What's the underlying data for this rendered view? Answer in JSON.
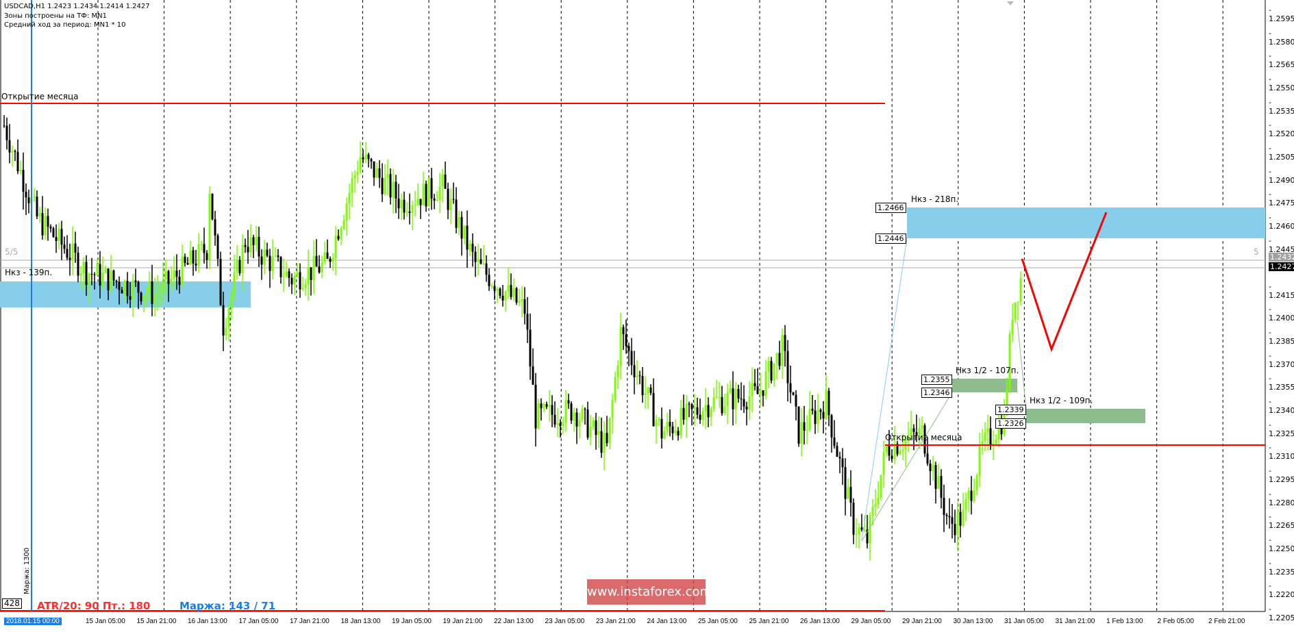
{
  "header": {
    "symbol_line": "USDCAD,H1  1.2423 1.2434 1.2414 1.2427",
    "zones_line": "Зоны построены на ТФ: MN1",
    "avg_line": "Средний ход за период: MN1 * 10"
  },
  "colors": {
    "bull": "#7cfc00",
    "bear": "#000000",
    "zone_blue": "#87ceeb",
    "zone_green": "#8fbc8f",
    "level_red": "#ff0000",
    "cursor_blue": "#1e7de0"
  },
  "annotations": {
    "month_open_1": "Открытие месяца",
    "month_open_2": "Открытие месяца",
    "zone_left": "Нкз - 139п.",
    "zone_right": "Нкз - 218п.",
    "zone_right_hi": "1.2466",
    "zone_right_lo": "1.2446",
    "half1": "Нкз 1/2 - 107п.",
    "half1_hi": "1.2355",
    "half1_lo": "1.2346",
    "half2": "Нкз 1/2 - 109п.",
    "half2_hi": "1.2339",
    "half2_lo": "1.2326",
    "level_left": "5/5",
    "level_right": "5",
    "counter": "428",
    "margin_vert": "Маржа: 1300",
    "atr": "ATR/20: 90  Пт.: 180",
    "margin": "Маржа: 143 / 71",
    "watermark": "www.instaforex.com"
  },
  "price_axis": {
    "ticks": [
      "1.2595",
      "1.2580",
      "1.2565",
      "1.2550",
      "1.2535",
      "1.2520",
      "1.2505",
      "1.2490",
      "1.2475",
      "1.2460",
      "1.2445",
      "1.2415",
      "1.2400",
      "1.2385",
      "1.2370",
      "1.2355",
      "1.2340",
      "1.2325",
      "1.2310",
      "1.2295",
      "1.2280",
      "1.2265",
      "1.2250",
      "1.2235",
      "1.2220",
      "1.2205"
    ],
    "ask": "1.2432",
    "bid": "1.2427"
  },
  "time_axis": {
    "cursor": "2018.01.15 00:00",
    "labels": [
      "15 Jan 05:00",
      "15 Jan 21:00",
      "16 Jan 13:00",
      "17 Jan 05:00",
      "17 Jan 21:00",
      "18 Jan 13:00",
      "19 Jan 05:00",
      "19 Jan 21:00",
      "22 Jan 13:00",
      "23 Jan 05:00",
      "23 Jan 21:00",
      "24 Jan 13:00",
      "25 Jan 05:00",
      "25 Jan 21:00",
      "26 Jan 13:00",
      "29 Jan 05:00",
      "29 Jan 21:00",
      "30 Jan 13:00",
      "31 Jan 05:00",
      "31 Jan 21:00",
      "1 Feb 13:00",
      "2 Feb 05:00",
      "2 Feb 21:00"
    ]
  },
  "chart_data": {
    "type": "candlestick",
    "symbol": "USDCAD",
    "timeframe": "H1",
    "ylim": [
      1.22,
      1.26
    ],
    "close_path": [
      [
        0,
        1.252
      ],
      [
        12,
        1.246
      ],
      [
        30,
        1.2425
      ],
      [
        55,
        1.241
      ],
      [
        74,
        1.244
      ],
      [
        75,
        1.248
      ],
      [
        80,
        1.239
      ],
      [
        88,
        1.2445
      ],
      [
        105,
        1.242
      ],
      [
        118,
        1.243
      ],
      [
        130,
        1.25
      ],
      [
        145,
        1.247
      ],
      [
        160,
        1.248
      ],
      [
        172,
        1.243
      ],
      [
        190,
        1.24
      ],
      [
        194,
        1.233
      ],
      [
        208,
        1.2335
      ],
      [
        220,
        1.231
      ],
      [
        225,
        1.2385
      ],
      [
        240,
        1.232
      ],
      [
        258,
        1.234
      ],
      [
        275,
        1.2345
      ],
      [
        284,
        1.2375
      ],
      [
        290,
        1.232
      ],
      [
        300,
        1.234
      ],
      [
        310,
        1.226
      ],
      [
        315,
        1.225
      ],
      [
        322,
        1.231
      ],
      [
        335,
        1.232
      ],
      [
        345,
        1.226
      ],
      [
        350,
        1.2265
      ],
      [
        357,
        1.231
      ],
      [
        365,
        1.233
      ],
      [
        368,
        1.24
      ],
      [
        372,
        1.2427
      ]
    ]
  }
}
